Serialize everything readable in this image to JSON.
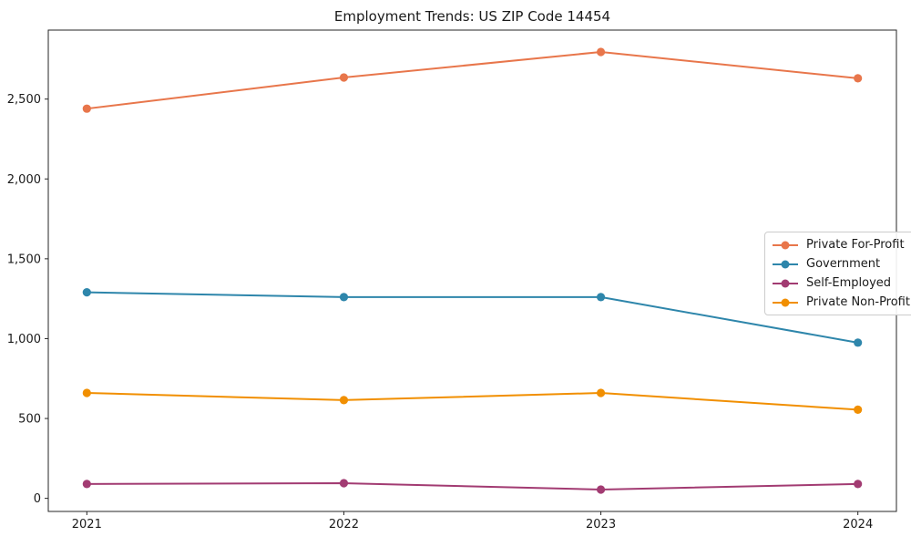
{
  "figure": {
    "background": "#ffffff",
    "text_color": "#1a1a1a",
    "spine_color": "#262626",
    "legend_border_color": "#cccccc"
  },
  "chart_data": {
    "type": "line",
    "title": "Employment Trends: US ZIP Code 14454",
    "xlabel": "",
    "ylabel": "",
    "x": [
      2021,
      2022,
      2023,
      2024
    ],
    "categories": [
      "2021",
      "2022",
      "2023",
      "2024"
    ],
    "series": [
      {
        "name": "Private For-Profit",
        "color": "#E8764B",
        "values": [
          2440,
          2635,
          2795,
          2630
        ]
      },
      {
        "name": "Government",
        "color": "#2E86AB",
        "values": [
          1290,
          1260,
          1260,
          975
        ]
      },
      {
        "name": "Self-Employed",
        "color": "#A23B72",
        "values": [
          90,
          95,
          55,
          90
        ]
      },
      {
        "name": "Private Non-Profit",
        "color": "#F18F01",
        "values": [
          660,
          615,
          660,
          555
        ]
      }
    ],
    "xlim": [
      2020.85,
      2024.15
    ],
    "ylim": [
      -82,
      2932
    ],
    "yticks": [
      0,
      500,
      1000,
      1500,
      2000,
      2500
    ],
    "ytick_labels": [
      "0",
      "500",
      "1,000",
      "1,500",
      "2,000",
      "2,500"
    ],
    "xtick_labels": [
      "2021",
      "2022",
      "2023",
      "2024"
    ],
    "grid": false,
    "legend_position": "center right",
    "marker": "circle",
    "line_width": 2,
    "marker_radius": 4.6
  }
}
